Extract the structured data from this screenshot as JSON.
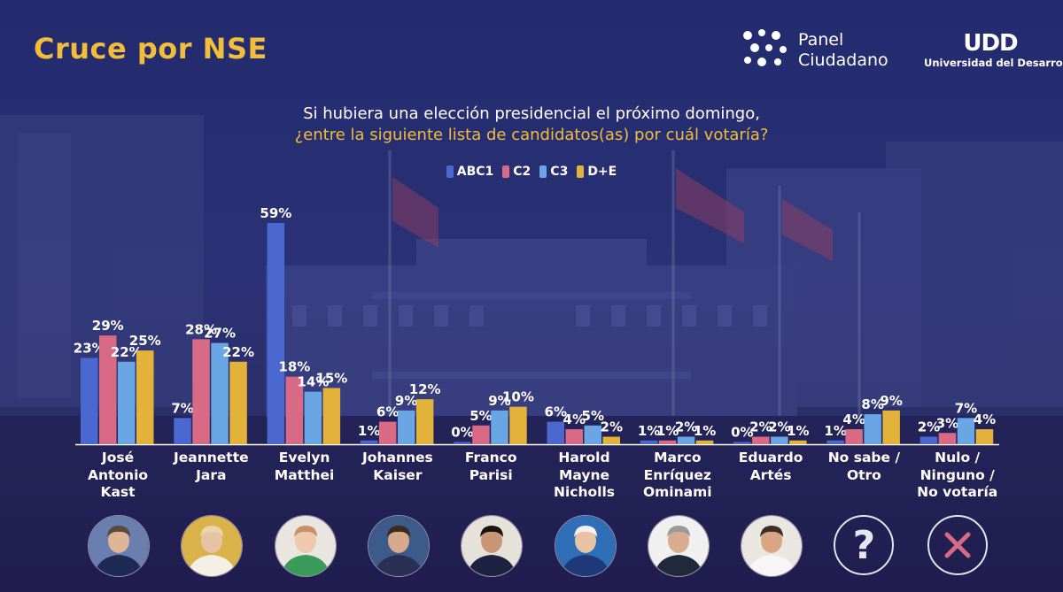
{
  "header": {
    "title": "Cruce por NSE",
    "logo_panel_line1": "Panel",
    "logo_panel_line2": "Ciudadano",
    "logo_udd_mark": "UDD",
    "logo_udd_name": "Universidad del Desarrollo"
  },
  "question": {
    "line1": "Si hubiera una elección presidencial el próximo domingo,",
    "line2": "¿entre la siguiente lista de candidatos(as) por cuál votaría?"
  },
  "colors": {
    "accent": "#f2bd3a",
    "ABC1": "#4a68d0",
    "C2": "#d96a86",
    "C3": "#6aa6e4",
    "D+E": "#e2b23a"
  },
  "icons": [
    "question-mark-icon",
    "close-icon"
  ],
  "chart_data": {
    "type": "bar",
    "categories": [
      [
        "José",
        "Antonio",
        "Kast"
      ],
      [
        "Jeannette",
        "Jara"
      ],
      [
        "Evelyn",
        "Matthei"
      ],
      [
        "Johannes",
        "Kaiser"
      ],
      [
        "Franco",
        "Parisi"
      ],
      [
        "Harold",
        "Mayne",
        "Nicholls"
      ],
      [
        "Marco",
        "Enríquez",
        "Ominami"
      ],
      [
        "Eduardo",
        "Artés"
      ],
      [
        "No sabe /",
        "Otro"
      ],
      [
        "Nulo /",
        "Ninguno /",
        "No votaría"
      ]
    ],
    "series": [
      {
        "name": "ABC1",
        "values": [
          23,
          7,
          59,
          1,
          0,
          6,
          1,
          0,
          1,
          2
        ]
      },
      {
        "name": "C2",
        "values": [
          29,
          28,
          18,
          6,
          5,
          4,
          1,
          2,
          4,
          3
        ]
      },
      {
        "name": "C3",
        "values": [
          22,
          27,
          14,
          9,
          9,
          5,
          2,
          2,
          8,
          7
        ]
      },
      {
        "name": "D+E",
        "values": [
          25,
          22,
          15,
          12,
          10,
          2,
          1,
          1,
          9,
          4
        ]
      }
    ],
    "value_suffix": "%",
    "ylim": [
      0,
      60
    ],
    "legend_position": "top-center",
    "grid": false
  }
}
